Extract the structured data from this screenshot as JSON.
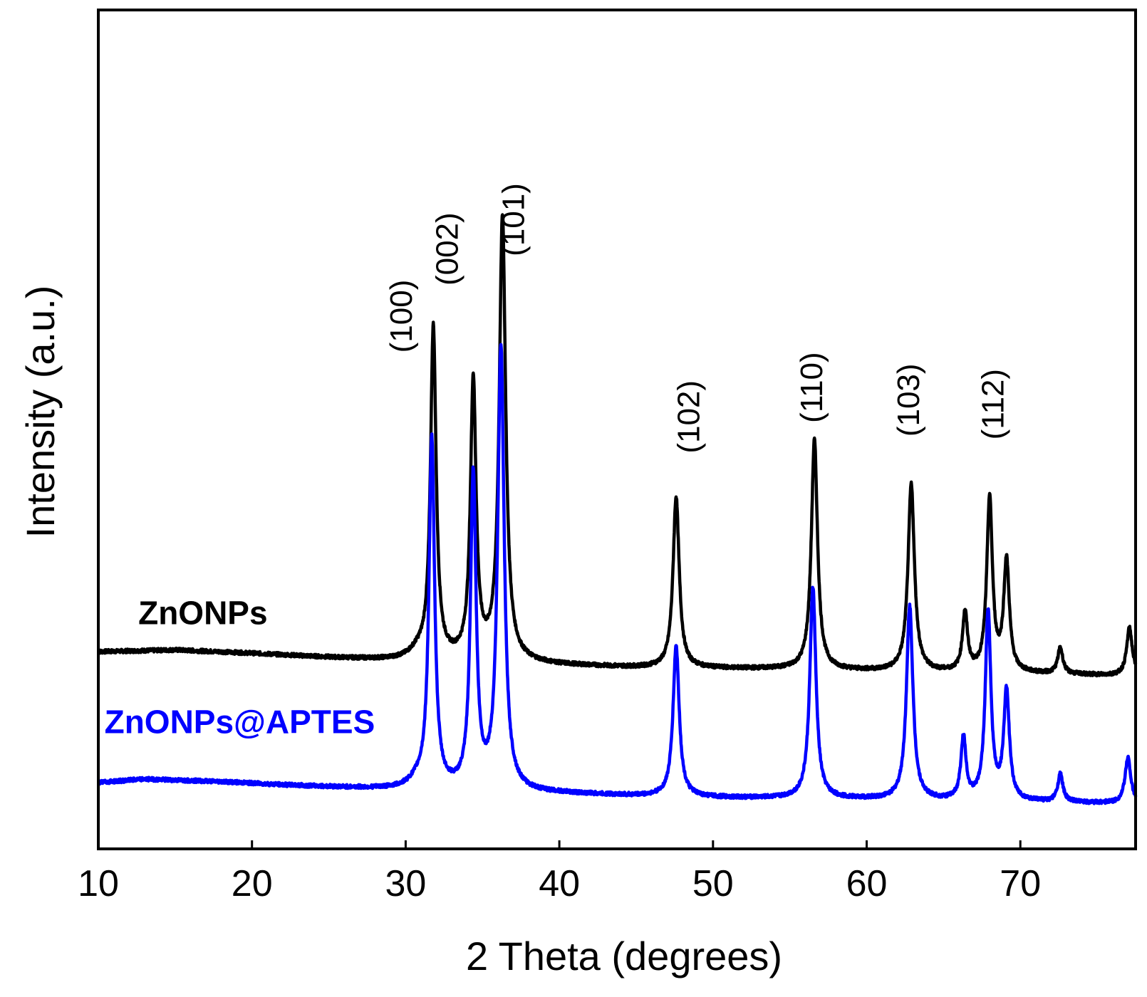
{
  "chart_data": {
    "type": "line",
    "xlabel": "2 Theta (degrees)",
    "ylabel": "Intensity (a.u.)",
    "xlim": [
      10,
      77.5
    ],
    "ylim": [
      0,
      100
    ],
    "x_ticks": [
      10,
      20,
      30,
      40,
      50,
      60,
      70
    ],
    "y_ticks_shown": false,
    "grid": false,
    "series": [
      {
        "name": "ZnONPs",
        "color": "#000000",
        "baseline": [
          [
            10,
            23.5
          ],
          [
            15,
            23.7
          ],
          [
            20,
            23.3
          ],
          [
            25,
            22.8
          ],
          [
            30,
            22.4
          ],
          [
            35,
            22.4
          ],
          [
            40,
            21.9
          ],
          [
            45,
            21.6
          ],
          [
            50,
            21.5
          ],
          [
            55,
            21.4
          ],
          [
            60,
            21.2
          ],
          [
            65,
            21.0
          ],
          [
            70,
            20.9
          ],
          [
            77.5,
            20.6
          ]
        ],
        "peaks": [
          {
            "x": 30.8,
            "h": 0.9,
            "w": 0.7
          },
          {
            "x": 31.8,
            "h": 39.5,
            "w": 0.22
          },
          {
            "x": 34.4,
            "h": 33.2,
            "w": 0.22
          },
          {
            "x": 36.3,
            "h": 52.9,
            "w": 0.25
          },
          {
            "x": 47.6,
            "h": 20.4,
            "w": 0.24
          },
          {
            "x": 56.6,
            "h": 27.4,
            "w": 0.24
          },
          {
            "x": 62.9,
            "h": 22.3,
            "w": 0.25
          },
          {
            "x": 66.4,
            "h": 7.0,
            "w": 0.2
          },
          {
            "x": 68.0,
            "h": 20.7,
            "w": 0.22
          },
          {
            "x": 69.1,
            "h": 13.2,
            "w": 0.22
          },
          {
            "x": 72.6,
            "h": 3.1,
            "w": 0.2
          },
          {
            "x": 77.1,
            "h": 5.7,
            "w": 0.22
          }
        ]
      },
      {
        "name": "ZnONPs@APTES",
        "color": "#0000ff",
        "baseline": [
          [
            10,
            7.9
          ],
          [
            13,
            8.3
          ],
          [
            18,
            8.0
          ],
          [
            22,
            7.6
          ],
          [
            26,
            7.3
          ],
          [
            30,
            7.0
          ],
          [
            35,
            6.8
          ],
          [
            40,
            6.6
          ],
          [
            45,
            6.3
          ],
          [
            50,
            6.1
          ],
          [
            55,
            6.0
          ],
          [
            60,
            5.9
          ],
          [
            65,
            5.7
          ],
          [
            70,
            5.6
          ],
          [
            77.5,
            5.4
          ]
        ],
        "peaks": [
          {
            "x": 30.8,
            "h": 0.9,
            "w": 0.7
          },
          {
            "x": 31.7,
            "h": 41.6,
            "w": 0.22
          },
          {
            "x": 34.4,
            "h": 37.5,
            "w": 0.22
          },
          {
            "x": 36.2,
            "h": 52.8,
            "w": 0.25
          },
          {
            "x": 47.6,
            "h": 18.0,
            "w": 0.24
          },
          {
            "x": 56.5,
            "h": 25.2,
            "w": 0.24
          },
          {
            "x": 62.8,
            "h": 23.1,
            "w": 0.25
          },
          {
            "x": 66.3,
            "h": 7.4,
            "w": 0.2
          },
          {
            "x": 67.9,
            "h": 22.5,
            "w": 0.22
          },
          {
            "x": 69.1,
            "h": 12.9,
            "w": 0.22
          },
          {
            "x": 72.6,
            "h": 3.3,
            "w": 0.2
          },
          {
            "x": 77.0,
            "h": 5.5,
            "w": 0.22
          }
        ]
      }
    ],
    "annotations": [
      {
        "text": "(100)",
        "x": 30.4,
        "y": 63.5
      },
      {
        "text": "(002)",
        "x": 33.4,
        "y": 71.5
      },
      {
        "text": "(101)",
        "x": 37.7,
        "y": 75.0
      },
      {
        "text": "(102)",
        "x": 49.1,
        "y": 51.5
      },
      {
        "text": "(110)",
        "x": 57.1,
        "y": 55.0
      },
      {
        "text": "(103)",
        "x": 63.4,
        "y": 53.5
      },
      {
        "text": "(112)",
        "x": 68.9,
        "y": 53.0
      }
    ],
    "series_labels": [
      {
        "text": "ZnONPs",
        "x": 12.6,
        "y": 26.8,
        "color": "#000000"
      },
      {
        "text": "ZnONPs@APTES",
        "x": 10.4,
        "y": 13.8,
        "color": "#0000ff"
      }
    ]
  }
}
